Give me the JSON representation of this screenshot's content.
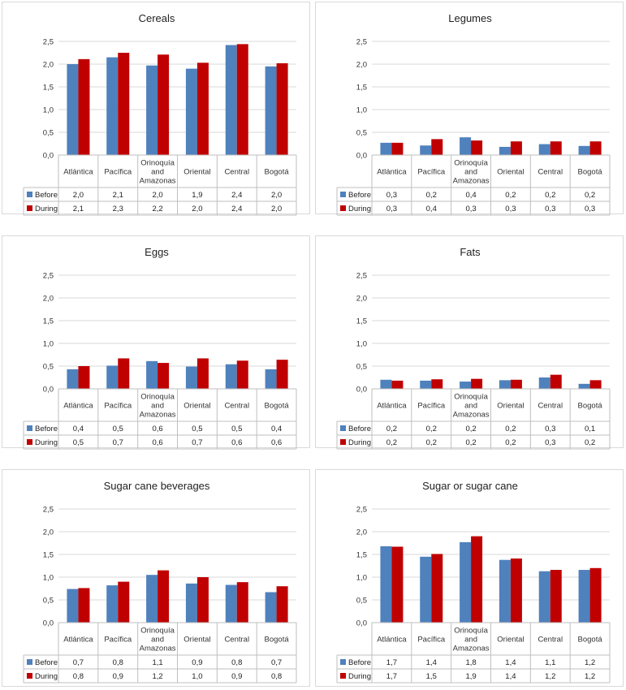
{
  "colors": {
    "before": "#4F81BD",
    "during": "#C00000",
    "grid": "#d9d9d9",
    "table": "#bfbfbf"
  },
  "categories": [
    "Atlántica",
    "Pacífica",
    "Orinoquía and Amazonas",
    "Oriental",
    "Central",
    "Bogotá"
  ],
  "series_names": [
    "Before",
    "During"
  ],
  "y_ticks": [
    "0,0",
    "0,5",
    "1,0",
    "1,5",
    "2,0",
    "2,5"
  ],
  "chart_data": [
    {
      "type": "bar",
      "title": "Cereals",
      "ylim": [
        0,
        2.5
      ],
      "categories": [
        "Atlántica",
        "Pacífica",
        "Orinoquía and Amazonas",
        "Oriental",
        "Central",
        "Bogotá"
      ],
      "series": [
        {
          "name": "Before",
          "values": [
            2.0,
            2.15,
            1.97,
            1.9,
            2.42,
            1.95
          ],
          "labels": [
            "2,0",
            "2,1",
            "2,0",
            "1,9",
            "2,4",
            "2,0"
          ]
        },
        {
          "name": "During",
          "values": [
            2.11,
            2.25,
            2.21,
            2.03,
            2.44,
            2.02
          ],
          "labels": [
            "2,1",
            "2,3",
            "2,2",
            "2,0",
            "2,4",
            "2,0"
          ]
        }
      ]
    },
    {
      "type": "bar",
      "title": "Legumes",
      "ylim": [
        0,
        2.5
      ],
      "categories": [
        "Atlántica",
        "Pacífica",
        "Orinoquía and Amazonas",
        "Oriental",
        "Central",
        "Bogotá"
      ],
      "series": [
        {
          "name": "Before",
          "values": [
            0.27,
            0.21,
            0.39,
            0.18,
            0.24,
            0.2
          ],
          "labels": [
            "0,3",
            "0,2",
            "0,4",
            "0,2",
            "0,2",
            "0,2"
          ]
        },
        {
          "name": "During",
          "values": [
            0.27,
            0.35,
            0.32,
            0.3,
            0.3,
            0.3
          ],
          "labels": [
            "0,3",
            "0,4",
            "0,3",
            "0,3",
            "0,3",
            "0,3"
          ]
        }
      ]
    },
    {
      "type": "bar",
      "title": "Eggs",
      "ylim": [
        0,
        2.5
      ],
      "categories": [
        "Atlántica",
        "Pacífica",
        "Orinoquía and Amazonas",
        "Oriental",
        "Central",
        "Bogotá"
      ],
      "series": [
        {
          "name": "Before",
          "values": [
            0.43,
            0.51,
            0.61,
            0.49,
            0.54,
            0.43
          ],
          "labels": [
            "0,4",
            "0,5",
            "0,6",
            "0,5",
            "0,5",
            "0,4"
          ]
        },
        {
          "name": "During",
          "values": [
            0.5,
            0.67,
            0.57,
            0.67,
            0.62,
            0.64
          ],
          "labels": [
            "0,5",
            "0,7",
            "0,6",
            "0,7",
            "0,6",
            "0,6"
          ]
        }
      ]
    },
    {
      "type": "bar",
      "title": "Fats",
      "ylim": [
        0,
        2.5
      ],
      "categories": [
        "Atlántica",
        "Pacífica",
        "Orinoquía and Amazonas",
        "Oriental",
        "Central",
        "Bogotá"
      ],
      "series": [
        {
          "name": "Before",
          "values": [
            0.2,
            0.18,
            0.16,
            0.19,
            0.25,
            0.11
          ],
          "labels": [
            "0,2",
            "0,2",
            "0,2",
            "0,2",
            "0,3",
            "0,1"
          ]
        },
        {
          "name": "During",
          "values": [
            0.18,
            0.21,
            0.22,
            0.2,
            0.31,
            0.19
          ],
          "labels": [
            "0,2",
            "0,2",
            "0,2",
            "0,2",
            "0,3",
            "0,2"
          ]
        }
      ]
    },
    {
      "type": "bar",
      "title": "Sugar cane beverages",
      "ylim": [
        0,
        2.5
      ],
      "categories": [
        "Atlántica",
        "Pacífica",
        "Orinoquía and Amazonas",
        "Oriental",
        "Central",
        "Bogotá"
      ],
      "series": [
        {
          "name": "Before",
          "values": [
            0.74,
            0.82,
            1.05,
            0.86,
            0.83,
            0.67
          ],
          "labels": [
            "0,7",
            "0,8",
            "1,1",
            "0,9",
            "0,8",
            "0,7"
          ]
        },
        {
          "name": "During",
          "values": [
            0.76,
            0.9,
            1.15,
            1.0,
            0.89,
            0.8
          ],
          "labels": [
            "0,8",
            "0,9",
            "1,2",
            "1,0",
            "0,9",
            "0,8"
          ]
        }
      ]
    },
    {
      "type": "bar",
      "title": "Sugar or sugar cane",
      "ylim": [
        0,
        2.5
      ],
      "categories": [
        "Atlántica",
        "Pacífica",
        "Orinoquía and Amazonas",
        "Oriental",
        "Central",
        "Bogotá"
      ],
      "series": [
        {
          "name": "Before",
          "values": [
            1.68,
            1.45,
            1.77,
            1.38,
            1.13,
            1.16
          ],
          "labels": [
            "1,7",
            "1,4",
            "1,8",
            "1,4",
            "1,1",
            "1,2"
          ]
        },
        {
          "name": "During",
          "values": [
            1.67,
            1.51,
            1.9,
            1.41,
            1.16,
            1.2
          ],
          "labels": [
            "1,7",
            "1,5",
            "1,9",
            "1,4",
            "1,2",
            "1,2"
          ]
        }
      ]
    }
  ]
}
